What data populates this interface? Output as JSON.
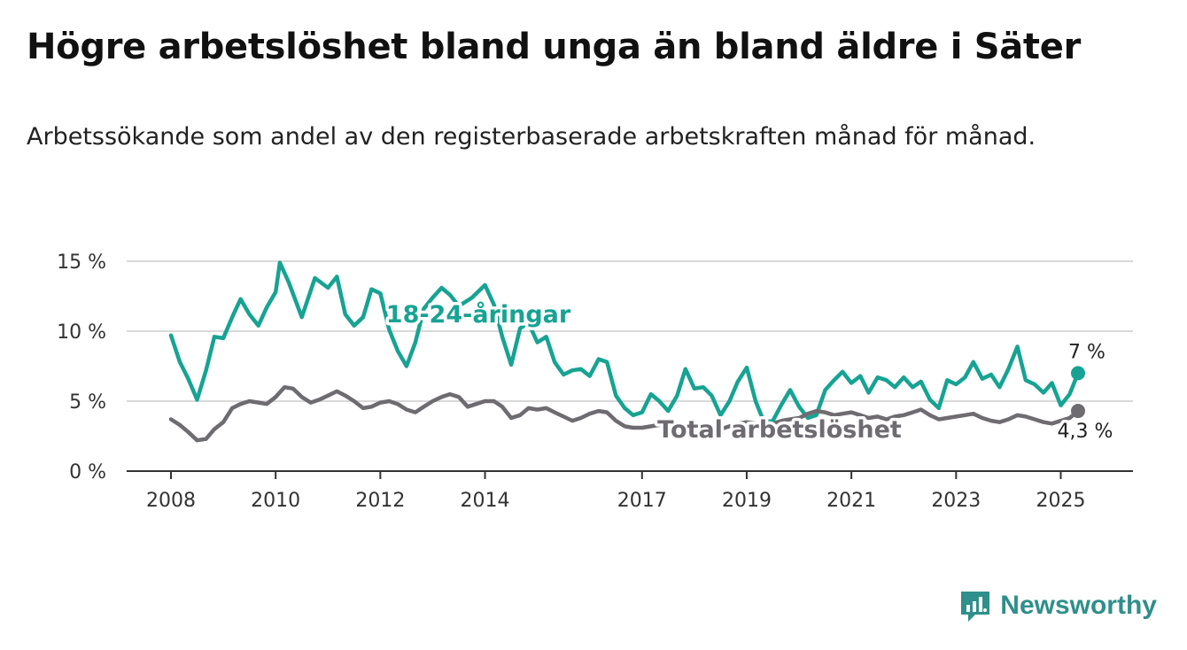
{
  "title": "Högre arbetslöshet bland unga än bland äldre i Säter",
  "subtitle": "Arbetssökande som andel av den registerbaserade arbetskraften månad för månad.",
  "brand": {
    "name": "Newsworthy",
    "icon": "newsworthy-logo-icon"
  },
  "colors": {
    "youth": "#17a393",
    "total": "#6e6b71",
    "grid": "#d9d9d9",
    "axis": "#333333"
  },
  "chart_data": {
    "type": "line",
    "y_unit": "%",
    "ylim": [
      0,
      15
    ],
    "xlim": [
      2008,
      2026
    ],
    "y_ticks": [
      0,
      5,
      10,
      15
    ],
    "y_tick_labels": [
      "0 %",
      "5 %",
      "10 %",
      "15 %"
    ],
    "x_ticks": [
      2008,
      2010,
      2012,
      2014,
      2017,
      2019,
      2021,
      2023,
      2025
    ],
    "x_tick_labels": [
      "2008",
      "2010",
      "2012",
      "2014",
      "2017",
      "2019",
      "2021",
      "2023",
      "2025"
    ],
    "grid": "horizontal",
    "series": [
      {
        "name": "18-24-åringar",
        "color": "#17a393",
        "end_label": "7 %",
        "points": [
          [
            2008.0,
            9.7
          ],
          [
            2008.17,
            7.8
          ],
          [
            2008.33,
            6.6
          ],
          [
            2008.5,
            5.1
          ],
          [
            2008.67,
            7.2
          ],
          [
            2008.83,
            9.6
          ],
          [
            2009.0,
            9.5
          ],
          [
            2009.17,
            11.0
          ],
          [
            2009.33,
            12.3
          ],
          [
            2009.5,
            11.2
          ],
          [
            2009.67,
            10.4
          ],
          [
            2009.83,
            11.7
          ],
          [
            2010.0,
            12.8
          ],
          [
            2010.08,
            14.9
          ],
          [
            2010.25,
            13.5
          ],
          [
            2010.5,
            11.0
          ],
          [
            2010.75,
            13.8
          ],
          [
            2011.0,
            13.1
          ],
          [
            2011.17,
            13.9
          ],
          [
            2011.33,
            11.2
          ],
          [
            2011.5,
            10.4
          ],
          [
            2011.67,
            11.0
          ],
          [
            2011.83,
            13.0
          ],
          [
            2012.0,
            12.7
          ],
          [
            2012.17,
            10.1
          ],
          [
            2012.33,
            8.6
          ],
          [
            2012.5,
            7.5
          ],
          [
            2012.67,
            9.2
          ],
          [
            2012.83,
            11.6
          ],
          [
            2013.0,
            12.4
          ],
          [
            2013.17,
            13.1
          ],
          [
            2013.33,
            12.6
          ],
          [
            2013.5,
            11.8
          ],
          [
            2013.75,
            12.4
          ],
          [
            2014.0,
            13.3
          ],
          [
            2014.17,
            11.9
          ],
          [
            2014.33,
            9.6
          ],
          [
            2014.5,
            7.6
          ],
          [
            2014.67,
            10.2
          ],
          [
            2014.83,
            10.6
          ],
          [
            2015.0,
            9.2
          ],
          [
            2015.17,
            9.6
          ],
          [
            2015.33,
            7.8
          ],
          [
            2015.5,
            6.9
          ],
          [
            2015.67,
            7.2
          ],
          [
            2015.83,
            7.3
          ],
          [
            2016.0,
            6.8
          ],
          [
            2016.17,
            8.0
          ],
          [
            2016.33,
            7.8
          ],
          [
            2016.5,
            5.4
          ],
          [
            2016.67,
            4.5
          ],
          [
            2016.83,
            4.0
          ],
          [
            2017.0,
            4.2
          ],
          [
            2017.17,
            5.5
          ],
          [
            2017.33,
            5.0
          ],
          [
            2017.5,
            4.3
          ],
          [
            2017.67,
            5.4
          ],
          [
            2017.83,
            7.3
          ],
          [
            2018.0,
            5.9
          ],
          [
            2018.17,
            6.0
          ],
          [
            2018.33,
            5.4
          ],
          [
            2018.5,
            4.0
          ],
          [
            2018.67,
            5.0
          ],
          [
            2018.83,
            6.4
          ],
          [
            2019.0,
            7.4
          ],
          [
            2019.17,
            5.0
          ],
          [
            2019.33,
            3.5
          ],
          [
            2019.5,
            3.6
          ],
          [
            2019.67,
            4.8
          ],
          [
            2019.83,
            5.8
          ],
          [
            2020.0,
            4.6
          ],
          [
            2020.17,
            3.8
          ],
          [
            2020.33,
            4.0
          ],
          [
            2020.5,
            5.8
          ],
          [
            2020.67,
            6.5
          ],
          [
            2020.83,
            7.1
          ],
          [
            2021.0,
            6.3
          ],
          [
            2021.17,
            6.8
          ],
          [
            2021.33,
            5.6
          ],
          [
            2021.5,
            6.7
          ],
          [
            2021.67,
            6.5
          ],
          [
            2021.83,
            6.0
          ],
          [
            2022.0,
            6.7
          ],
          [
            2022.17,
            6.0
          ],
          [
            2022.33,
            6.4
          ],
          [
            2022.5,
            5.1
          ],
          [
            2022.67,
            4.5
          ],
          [
            2022.83,
            6.5
          ],
          [
            2023.0,
            6.2
          ],
          [
            2023.17,
            6.7
          ],
          [
            2023.33,
            7.8
          ],
          [
            2023.5,
            6.6
          ],
          [
            2023.67,
            6.9
          ],
          [
            2023.83,
            6.0
          ],
          [
            2024.0,
            7.3
          ],
          [
            2024.17,
            8.9
          ],
          [
            2024.33,
            6.5
          ],
          [
            2024.5,
            6.2
          ],
          [
            2024.67,
            5.6
          ],
          [
            2024.83,
            6.3
          ],
          [
            2025.0,
            4.7
          ],
          [
            2025.17,
            5.5
          ],
          [
            2025.33,
            7.0
          ]
        ]
      },
      {
        "name": "Total arbetslöshet",
        "color": "#6e6b71",
        "end_label": "4,3 %",
        "points": [
          [
            2008.0,
            3.7
          ],
          [
            2008.17,
            3.3
          ],
          [
            2008.33,
            2.8
          ],
          [
            2008.5,
            2.2
          ],
          [
            2008.67,
            2.3
          ],
          [
            2008.83,
            3.0
          ],
          [
            2009.0,
            3.5
          ],
          [
            2009.17,
            4.5
          ],
          [
            2009.33,
            4.8
          ],
          [
            2009.5,
            5.0
          ],
          [
            2009.67,
            4.9
          ],
          [
            2009.83,
            4.8
          ],
          [
            2010.0,
            5.3
          ],
          [
            2010.17,
            6.0
          ],
          [
            2010.33,
            5.9
          ],
          [
            2010.5,
            5.3
          ],
          [
            2010.67,
            4.9
          ],
          [
            2010.83,
            5.1
          ],
          [
            2011.0,
            5.4
          ],
          [
            2011.17,
            5.7
          ],
          [
            2011.33,
            5.4
          ],
          [
            2011.5,
            5.0
          ],
          [
            2011.67,
            4.5
          ],
          [
            2011.83,
            4.6
          ],
          [
            2012.0,
            4.9
          ],
          [
            2012.17,
            5.0
          ],
          [
            2012.33,
            4.8
          ],
          [
            2012.5,
            4.4
          ],
          [
            2012.67,
            4.2
          ],
          [
            2012.83,
            4.6
          ],
          [
            2013.0,
            5.0
          ],
          [
            2013.17,
            5.3
          ],
          [
            2013.33,
            5.5
          ],
          [
            2013.5,
            5.3
          ],
          [
            2013.67,
            4.6
          ],
          [
            2013.83,
            4.8
          ],
          [
            2014.0,
            5.0
          ],
          [
            2014.17,
            5.0
          ],
          [
            2014.33,
            4.6
          ],
          [
            2014.5,
            3.8
          ],
          [
            2014.67,
            4.0
          ],
          [
            2014.83,
            4.5
          ],
          [
            2015.0,
            4.4
          ],
          [
            2015.17,
            4.5
          ],
          [
            2015.33,
            4.2
          ],
          [
            2015.5,
            3.9
          ],
          [
            2015.67,
            3.6
          ],
          [
            2015.83,
            3.8
          ],
          [
            2016.0,
            4.1
          ],
          [
            2016.17,
            4.3
          ],
          [
            2016.33,
            4.2
          ],
          [
            2016.5,
            3.6
          ],
          [
            2016.67,
            3.2
          ],
          [
            2016.83,
            3.1
          ],
          [
            2017.0,
            3.1
          ],
          [
            2017.17,
            3.2
          ],
          [
            2017.33,
            3.3
          ],
          [
            2017.5,
            3.2
          ],
          [
            2017.67,
            3.0
          ],
          [
            2017.83,
            3.1
          ],
          [
            2018.0,
            3.3
          ],
          [
            2018.17,
            3.4
          ],
          [
            2018.33,
            3.2
          ],
          [
            2018.5,
            3.0
          ],
          [
            2018.67,
            3.2
          ],
          [
            2018.83,
            3.4
          ],
          [
            2019.0,
            3.5
          ],
          [
            2019.17,
            3.4
          ],
          [
            2019.33,
            3.3
          ],
          [
            2019.5,
            3.4
          ],
          [
            2019.67,
            3.6
          ],
          [
            2019.83,
            3.7
          ],
          [
            2020.0,
            3.8
          ],
          [
            2020.17,
            4.1
          ],
          [
            2020.33,
            4.3
          ],
          [
            2020.5,
            4.2
          ],
          [
            2020.67,
            4.0
          ],
          [
            2020.83,
            4.1
          ],
          [
            2021.0,
            4.2
          ],
          [
            2021.17,
            4.0
          ],
          [
            2021.33,
            3.8
          ],
          [
            2021.5,
            3.9
          ],
          [
            2021.67,
            3.7
          ],
          [
            2021.83,
            3.9
          ],
          [
            2022.0,
            4.0
          ],
          [
            2022.17,
            4.2
          ],
          [
            2022.33,
            4.4
          ],
          [
            2022.5,
            4.0
          ],
          [
            2022.67,
            3.7
          ],
          [
            2022.83,
            3.8
          ],
          [
            2023.0,
            3.9
          ],
          [
            2023.17,
            4.0
          ],
          [
            2023.33,
            4.1
          ],
          [
            2023.5,
            3.8
          ],
          [
            2023.67,
            3.6
          ],
          [
            2023.83,
            3.5
          ],
          [
            2024.0,
            3.7
          ],
          [
            2024.17,
            4.0
          ],
          [
            2024.33,
            3.9
          ],
          [
            2024.5,
            3.7
          ],
          [
            2024.67,
            3.5
          ],
          [
            2024.83,
            3.4
          ],
          [
            2025.0,
            3.6
          ],
          [
            2025.17,
            3.8
          ],
          [
            2025.33,
            4.3
          ]
        ]
      }
    ]
  }
}
